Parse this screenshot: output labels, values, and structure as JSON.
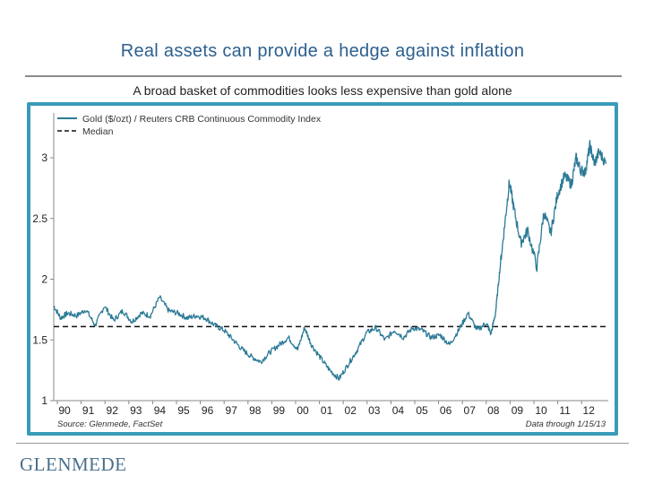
{
  "slide": {
    "title": "Real assets can provide a hedge against inflation",
    "subtitle": "A broad basket of commodities looks less expensive than gold alone",
    "logo_text": "GLENMEDE"
  },
  "colors": {
    "title": "#2c5f8e",
    "frame": "#3a9bb8",
    "series": "#2b7a96",
    "median": "#111111"
  },
  "chart_data": {
    "type": "line",
    "title": "",
    "xlabel": "",
    "ylabel": "",
    "ylim": [
      1,
      3.2
    ],
    "yticks": [
      "1",
      "1.5",
      "2",
      "2.5",
      "3"
    ],
    "ytick_values": [
      1,
      1.5,
      2,
      2.5,
      3
    ],
    "categories": [
      "90",
      "91",
      "92",
      "93",
      "94",
      "95",
      "96",
      "97",
      "98",
      "99",
      "00",
      "01",
      "02",
      "03",
      "04",
      "05",
      "06",
      "07",
      "08",
      "09",
      "10",
      "11",
      "12"
    ],
    "legend": {
      "series_label": "Gold ($/ozt) / Reuters CRB Continuous Commodity Index",
      "median_label": "Median",
      "placement": "top-left"
    },
    "median_value": 1.61,
    "series": [
      {
        "name": "Gold ($/ozt) / Reuters CRB Continuous Commodity Index",
        "x": [
          1989.0,
          1989.3,
          1989.6,
          1990.0,
          1990.4,
          1990.8,
          1991.2,
          1991.6,
          1992.0,
          1992.4,
          1992.8,
          1993.2,
          1993.6,
          1994.0,
          1994.4,
          1994.8,
          1995.2,
          1995.6,
          1996.0,
          1996.4,
          1996.8,
          1997.2,
          1997.6,
          1998.0,
          1998.4,
          1998.8,
          1999.2,
          1999.6,
          1999.9,
          2000.2,
          2000.6,
          2001.0,
          2001.4,
          2001.8,
          2002.2,
          2002.6,
          2003.0,
          2003.4,
          2003.8,
          2004.2,
          2004.6,
          2005.0,
          2005.4,
          2005.8,
          2006.2,
          2006.6,
          2007.0,
          2007.4,
          2007.8,
          2008.0,
          2008.2,
          2008.4,
          2008.6,
          2008.8,
          2009.0,
          2009.3,
          2009.6,
          2010.0,
          2010.3,
          2010.6,
          2010.9,
          2011.2,
          2011.5,
          2011.7,
          2011.9,
          2012.1,
          2012.3,
          2012.5,
          2012.7,
          2013.0
        ],
        "values": [
          1.78,
          1.68,
          1.72,
          1.7,
          1.75,
          1.62,
          1.78,
          1.66,
          1.74,
          1.65,
          1.72,
          1.7,
          1.85,
          1.74,
          1.72,
          1.68,
          1.7,
          1.68,
          1.62,
          1.58,
          1.5,
          1.42,
          1.36,
          1.32,
          1.4,
          1.46,
          1.52,
          1.42,
          1.6,
          1.46,
          1.35,
          1.25,
          1.18,
          1.3,
          1.42,
          1.56,
          1.6,
          1.5,
          1.58,
          1.52,
          1.6,
          1.58,
          1.52,
          1.54,
          1.46,
          1.58,
          1.72,
          1.58,
          1.64,
          1.55,
          1.72,
          2.1,
          2.45,
          2.8,
          2.58,
          2.3,
          2.4,
          2.1,
          2.55,
          2.38,
          2.7,
          2.85,
          2.78,
          3.0,
          2.9,
          2.88,
          3.1,
          2.95,
          3.05,
          2.95
        ]
      }
    ],
    "annotations": {
      "source": "Source: Glenmede, FactSet",
      "data_through": "Data through 1/15/13"
    }
  }
}
